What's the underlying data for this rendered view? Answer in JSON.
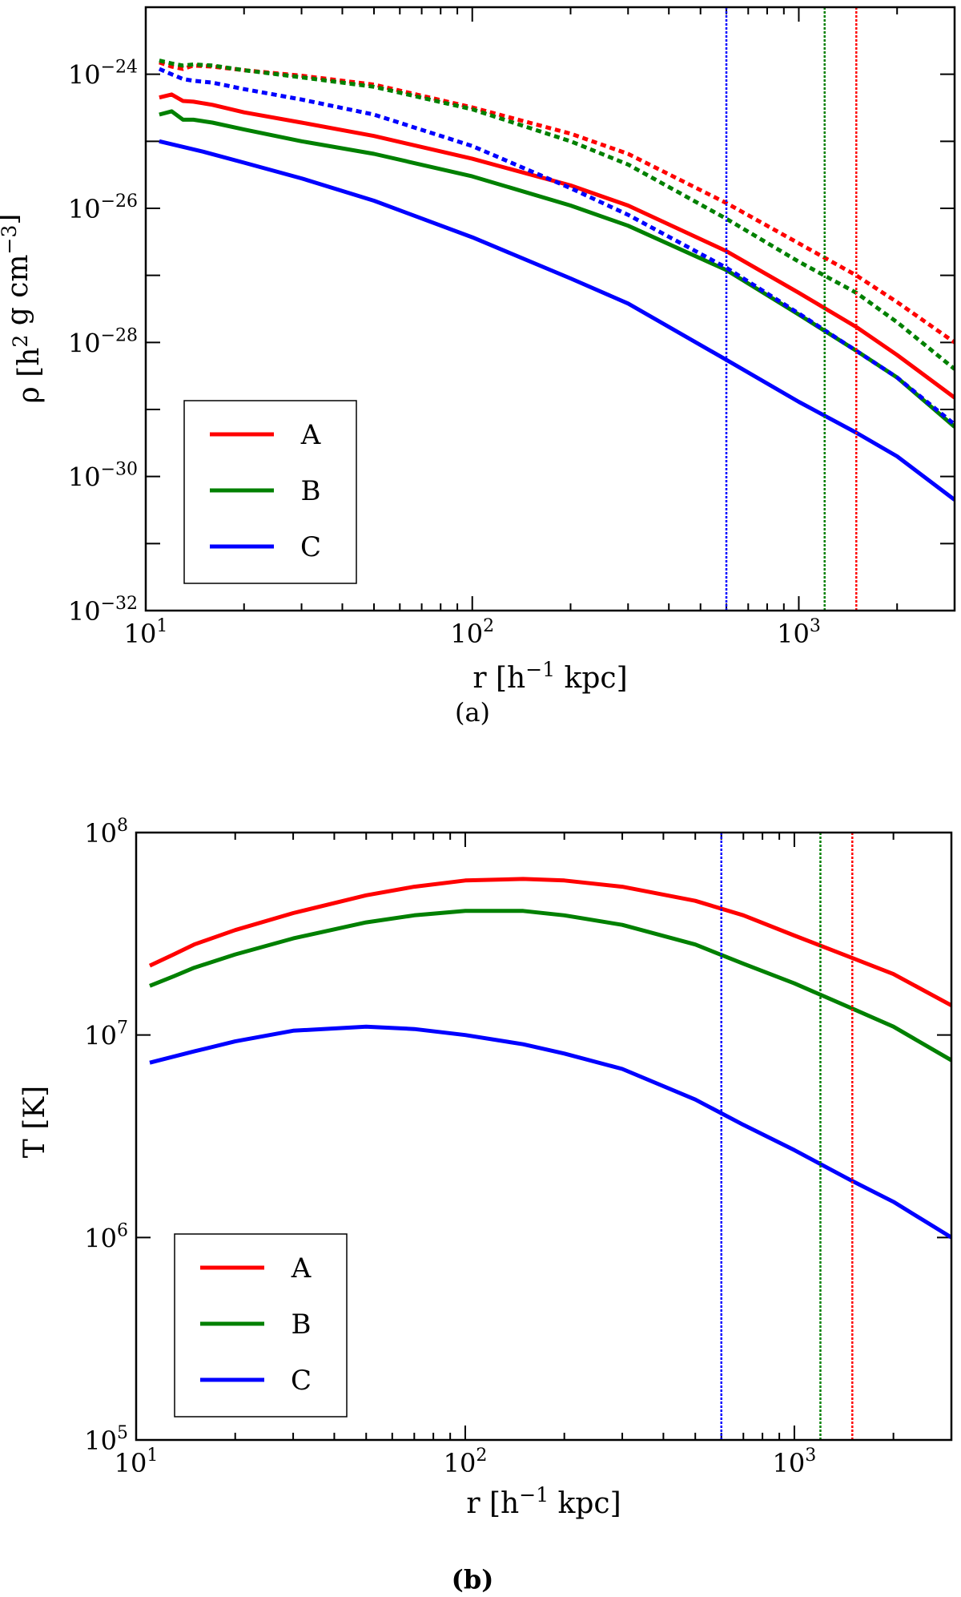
{
  "colors": {
    "A": "#ff0000",
    "B": "#008000",
    "C": "#0000ff"
  },
  "chart_data": [
    {
      "type": "line",
      "panel": "(a)",
      "title": "",
      "xlabel": "r [h^-1 kpc]",
      "ylabel": "ρ [h^2 g cm^-3]",
      "xscale": "log",
      "yscale": "log",
      "xlim": [
        10,
        3000
      ],
      "ylim": [
        1e-32,
        1e-23
      ],
      "xticks": [
        {
          "base": "10",
          "exp": "1"
        },
        {
          "base": "10",
          "exp": "2"
        },
        {
          "base": "10",
          "exp": "3"
        }
      ],
      "yticks": [
        {
          "base": "10",
          "exp": "−32"
        },
        {
          "base": "10",
          "exp": "−30"
        },
        {
          "base": "10",
          "exp": "−28"
        },
        {
          "base": "10",
          "exp": "−26"
        },
        {
          "base": "10",
          "exp": "−24"
        }
      ],
      "legend": {
        "position": "bottom-left",
        "entries": [
          "A",
          "B",
          "C"
        ]
      },
      "vlines": [
        {
          "name": "C",
          "x": 600
        },
        {
          "name": "B",
          "x": 1200
        },
        {
          "name": "A",
          "x": 1500
        }
      ],
      "series": [
        {
          "name": "A",
          "style": "solid",
          "x": [
            11,
            12,
            13,
            14,
            16,
            20,
            30,
            50,
            100,
            200,
            300,
            600,
            1000,
            1500,
            2000,
            3000
          ],
          "y": [
            4.5e-25,
            5e-25,
            4e-25,
            3.9e-25,
            3.5e-25,
            2.7e-25,
            1.9e-25,
            1.2e-25,
            5.5e-26,
            2.2e-26,
            1.1e-26,
            2.3e-27,
            5.5e-28,
            1.7e-28,
            6.5e-29,
            1.5e-29
          ]
        },
        {
          "name": "B",
          "style": "solid",
          "x": [
            11,
            12,
            13,
            14,
            16,
            20,
            30,
            50,
            100,
            200,
            300,
            600,
            1000,
            1500,
            2000,
            3000
          ],
          "y": [
            2.5e-25,
            2.8e-25,
            2.1e-25,
            2.1e-25,
            1.9e-25,
            1.5e-25,
            1e-25,
            6.5e-26,
            3e-26,
            1.1e-26,
            5.5e-27,
            1.2e-27,
            2.6e-28,
            7.5e-29,
            3e-29,
            5.5e-30
          ]
        },
        {
          "name": "C",
          "style": "solid",
          "x": [
            11,
            15,
            20,
            30,
            50,
            100,
            200,
            300,
            600,
            1000,
            1500,
            2000,
            3000
          ],
          "y": [
            1e-25,
            7e-26,
            4.8e-26,
            2.8e-26,
            1.3e-26,
            3.7e-27,
            9e-28,
            3.8e-28,
            5.5e-29,
            1.3e-29,
            4.5e-30,
            2e-30,
            4.5e-31
          ]
        },
        {
          "name": "A",
          "style": "dotted",
          "x": [
            11,
            12,
            13,
            14,
            16,
            20,
            30,
            50,
            100,
            200,
            300,
            600,
            1000,
            1500,
            2000,
            3000
          ],
          "y": [
            1.5e-24,
            1.3e-24,
            1.2e-24,
            1.35e-24,
            1.3e-24,
            1.15e-24,
            9.5e-25,
            7e-25,
            3.2e-25,
            1.3e-25,
            6.5e-26,
            1.2e-26,
            3e-27,
            1e-27,
            4e-28,
            1e-28
          ]
        },
        {
          "name": "B",
          "style": "dotted",
          "x": [
            11,
            12,
            13,
            14,
            16,
            20,
            30,
            50,
            100,
            200,
            300,
            600,
            1000,
            1500,
            2000,
            3000
          ],
          "y": [
            1.6e-24,
            1.45e-24,
            1.35e-24,
            1.4e-24,
            1.35e-24,
            1.15e-24,
            9e-25,
            6.5e-25,
            3e-25,
            1e-25,
            4.5e-26,
            7e-27,
            1.6e-27,
            5.5e-28,
            2e-28,
            4e-29
          ]
        },
        {
          "name": "C",
          "style": "dotted",
          "x": [
            11,
            12,
            13,
            14,
            16,
            20,
            30,
            50,
            100,
            200,
            300,
            600,
            1000,
            1500,
            2000,
            3000
          ],
          "y": [
            1.2e-24,
            1e-24,
            8.5e-25,
            8e-25,
            7.5e-25,
            6e-25,
            4.2e-25,
            2.5e-25,
            8.5e-26,
            2e-26,
            8e-27,
            1.3e-27,
            2.7e-28,
            7.5e-29,
            3e-29,
            6e-30
          ]
        }
      ]
    },
    {
      "type": "line",
      "panel": "(b)",
      "title": "",
      "xlabel": "r [h^-1 kpc]",
      "ylabel": "T [K]",
      "xscale": "log",
      "yscale": "log",
      "xlim": [
        10,
        3000
      ],
      "ylim": [
        100000.0,
        100000000.0
      ],
      "xticks": [
        {
          "base": "10",
          "exp": "1"
        },
        {
          "base": "10",
          "exp": "2"
        },
        {
          "base": "10",
          "exp": "3"
        }
      ],
      "yticks": [
        {
          "base": "10",
          "exp": "5"
        },
        {
          "base": "10",
          "exp": "6"
        },
        {
          "base": "10",
          "exp": "7"
        },
        {
          "base": "10",
          "exp": "8"
        }
      ],
      "legend": {
        "position": "bottom-left",
        "entries": [
          "A",
          "B",
          "C"
        ]
      },
      "vlines": [
        {
          "name": "C",
          "x": 600
        },
        {
          "name": "B",
          "x": 1200
        },
        {
          "name": "A",
          "x": 1500
        }
      ],
      "series": [
        {
          "name": "A",
          "style": "solid",
          "x": [
            11,
            13,
            15,
            20,
            30,
            50,
            70,
            100,
            150,
            200,
            300,
            500,
            700,
            1000,
            1500,
            2000,
            3000
          ],
          "y": [
            22000000.0,
            25000000.0,
            28000000.0,
            33000000.0,
            40000000.0,
            49000000.0,
            54000000.0,
            58000000.0,
            59000000.0,
            58000000.0,
            54000000.0,
            46000000.0,
            39000000.0,
            31000000.0,
            24000000.0,
            20000000.0,
            14000000.0
          ]
        },
        {
          "name": "B",
          "style": "solid",
          "x": [
            11,
            13,
            15,
            20,
            30,
            50,
            70,
            100,
            150,
            200,
            300,
            500,
            700,
            1000,
            1500,
            2000,
            3000
          ],
          "y": [
            17500000.0,
            19500000.0,
            21500000.0,
            25000000.0,
            30000000.0,
            36000000.0,
            39000000.0,
            41000000.0,
            41000000.0,
            39000000.0,
            35000000.0,
            28000000.0,
            22500000.0,
            18000000.0,
            13500000.0,
            11000000.0,
            7500000.0
          ]
        },
        {
          "name": "C",
          "style": "solid",
          "x": [
            11,
            15,
            20,
            30,
            50,
            70,
            100,
            150,
            200,
            300,
            500,
            700,
            1000,
            1500,
            2000,
            3000
          ],
          "y": [
            7300000.0,
            8300000.0,
            9300000.0,
            10500000.0,
            11000000.0,
            10700000.0,
            10000000.0,
            9000000.0,
            8100000.0,
            6800000.0,
            4800000.0,
            3600000.0,
            2700000.0,
            1900000.0,
            1500000.0,
            1000000.0
          ]
        }
      ]
    }
  ],
  "captions": {
    "a": "(a)",
    "b": "(b)"
  }
}
